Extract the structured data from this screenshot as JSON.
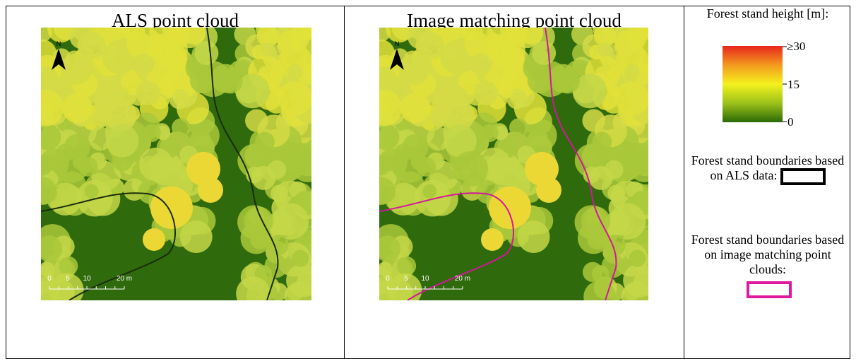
{
  "panels": [
    {
      "title": "ALS point cloud",
      "north": "N",
      "scale_labels": [
        "0",
        "5",
        "10",
        "20 m"
      ]
    },
    {
      "title": "Image matching point cloud",
      "north": "N",
      "scale_labels": [
        "0",
        "5",
        "10",
        "20 m"
      ]
    }
  ],
  "legend": {
    "height_title": "Forest stand height [m]:",
    "height_ticks": [
      "≥30",
      "15",
      "0"
    ],
    "boundary_als": "Forest stand boundaries based on ALS data:",
    "boundary_im": "Forest stand boundaries based on image matching point clouds:"
  }
}
